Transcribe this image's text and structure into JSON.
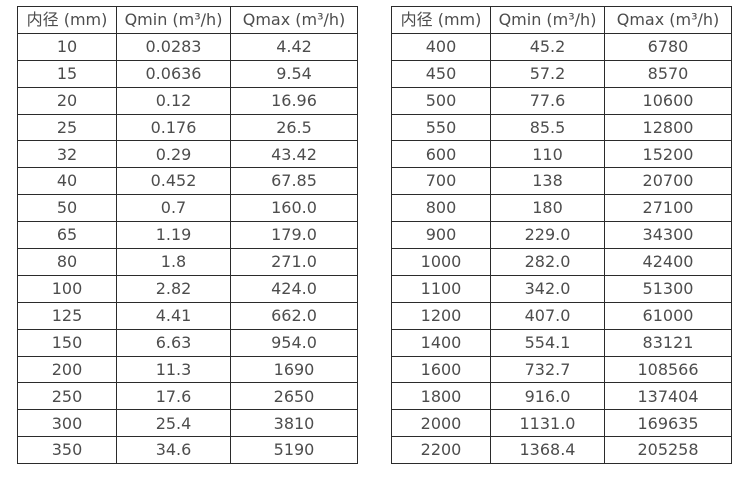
{
  "tables": [
    {
      "name": "flow-rate-table-small-diameters",
      "headers": [
        "内径 (mm)",
        "Qmin (m³/h)",
        "Qmax (m³/h)"
      ],
      "rows": [
        [
          "10",
          "0.0283",
          "4.42"
        ],
        [
          "15",
          "0.0636",
          "9.54"
        ],
        [
          "20",
          "0.12",
          "16.96"
        ],
        [
          "25",
          "0.176",
          "26.5"
        ],
        [
          "32",
          "0.29",
          "43.42"
        ],
        [
          "40",
          "0.452",
          "67.85"
        ],
        [
          "50",
          "0.7",
          "160.0"
        ],
        [
          "65",
          "1.19",
          "179.0"
        ],
        [
          "80",
          "1.8",
          "271.0"
        ],
        [
          "100",
          "2.82",
          "424.0"
        ],
        [
          "125",
          "4.41",
          "662.0"
        ],
        [
          "150",
          "6.63",
          "954.0"
        ],
        [
          "200",
          "11.3",
          "1690"
        ],
        [
          "250",
          "17.6",
          "2650"
        ],
        [
          "300",
          "25.4",
          "3810"
        ],
        [
          "350",
          "34.6",
          "5190"
        ]
      ]
    },
    {
      "name": "flow-rate-table-large-diameters",
      "headers": [
        "内径 (mm)",
        "Qmin (m³/h)",
        "Qmax (m³/h)"
      ],
      "rows": [
        [
          "400",
          "45.2",
          "6780"
        ],
        [
          "450",
          "57.2",
          "8570"
        ],
        [
          "500",
          "77.6",
          "10600"
        ],
        [
          "550",
          "85.5",
          "12800"
        ],
        [
          "600",
          "110",
          "15200"
        ],
        [
          "700",
          "138",
          "20700"
        ],
        [
          "800",
          "180",
          "27100"
        ],
        [
          "900",
          "229.0",
          "34300"
        ],
        [
          "1000",
          "282.0",
          "42400"
        ],
        [
          "1100",
          "342.0",
          "51300"
        ],
        [
          "1200",
          "407.0",
          "61000"
        ],
        [
          "1400",
          "554.1",
          "83121"
        ],
        [
          "1600",
          "732.7",
          "108566"
        ],
        [
          "1800",
          "916.0",
          "137404"
        ],
        [
          "2000",
          "1131.0",
          "169635"
        ],
        [
          "2200",
          "1368.4",
          "205258"
        ]
      ]
    }
  ],
  "colors": {
    "border": "#2b2b2b",
    "text": "#4d4d4d",
    "background": "#ffffff"
  }
}
